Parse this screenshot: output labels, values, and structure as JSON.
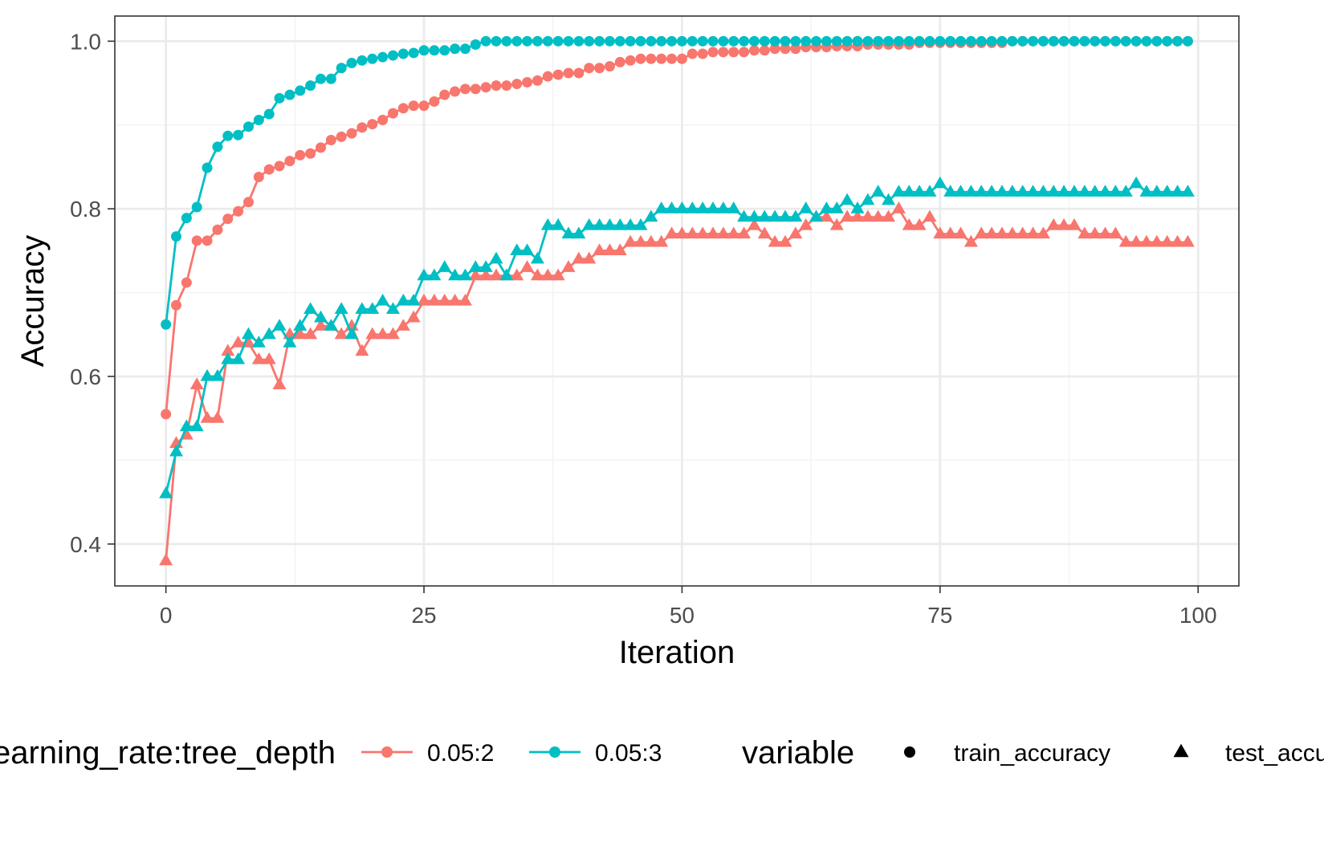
{
  "colors": {
    "series_0.05:2": "#F8766D",
    "series_0.05:3": "#00BFC4",
    "panel_border": "#333333",
    "grid_major": "#EBEBEB",
    "grid_minor": "#F3F3F3"
  },
  "chart_data": {
    "type": "line",
    "xlabel": "Iteration",
    "ylabel": "Accuracy",
    "xlim": [
      -4.95,
      103.95
    ],
    "ylim": [
      0.35,
      1.03
    ],
    "x_ticks": [
      0,
      25,
      50,
      75,
      100
    ],
    "x_tick_labels": [
      "0",
      "25",
      "50",
      "75",
      "100"
    ],
    "y_ticks": [
      0.4,
      0.6,
      0.8,
      1.0
    ],
    "y_tick_labels": [
      "0.4",
      "0.6",
      "0.8",
      "1.0"
    ],
    "grid": true,
    "legend_position": "bottom",
    "legend": {
      "color_title": "learning_rate:tree_depth",
      "color_entries": [
        "0.05:2",
        "0.05:3"
      ],
      "shape_title": "variable",
      "shape_entries": [
        {
          "label": "train_accuracy",
          "shape": "circle"
        },
        {
          "label": "test_accuracy",
          "shape": "triangle"
        }
      ]
    },
    "x": [
      0,
      1,
      2,
      3,
      4,
      5,
      6,
      7,
      8,
      9,
      10,
      11,
      12,
      13,
      14,
      15,
      16,
      17,
      18,
      19,
      20,
      21,
      22,
      23,
      24,
      25,
      26,
      27,
      28,
      29,
      30,
      31,
      32,
      33,
      34,
      35,
      36,
      37,
      38,
      39,
      40,
      41,
      42,
      43,
      44,
      45,
      46,
      47,
      48,
      49,
      50,
      51,
      52,
      53,
      54,
      55,
      56,
      57,
      58,
      59,
      60,
      61,
      62,
      63,
      64,
      65,
      66,
      67,
      68,
      69,
      70,
      71,
      72,
      73,
      74,
      75,
      76,
      77,
      78,
      79,
      80,
      81,
      82,
      83,
      84,
      85,
      86,
      87,
      88,
      89,
      90,
      91,
      92,
      93,
      94,
      95,
      96,
      97,
      98,
      99
    ],
    "series": [
      {
        "name": "0.05:2",
        "variable": "train_accuracy",
        "color": "0.05:2",
        "marker": "circle",
        "values": [
          0.555,
          0.685,
          0.712,
          0.762,
          0.762,
          0.775,
          0.788,
          0.797,
          0.808,
          0.838,
          0.847,
          0.851,
          0.857,
          0.864,
          0.866,
          0.873,
          0.882,
          0.886,
          0.89,
          0.897,
          0.901,
          0.906,
          0.914,
          0.92,
          0.923,
          0.923,
          0.928,
          0.936,
          0.94,
          0.943,
          0.943,
          0.945,
          0.947,
          0.947,
          0.949,
          0.951,
          0.953,
          0.958,
          0.96,
          0.962,
          0.962,
          0.968,
          0.968,
          0.97,
          0.975,
          0.977,
          0.979,
          0.979,
          0.979,
          0.979,
          0.979,
          0.985,
          0.985,
          0.987,
          0.987,
          0.987,
          0.987,
          0.989,
          0.989,
          0.991,
          0.991,
          0.991,
          0.993,
          0.993,
          0.993,
          0.994,
          0.994,
          0.994,
          0.996,
          0.996,
          0.996,
          0.996,
          0.996,
          0.998,
          0.998,
          0.998,
          0.998,
          0.998,
          0.998,
          0.998,
          0.998,
          0.998,
          1.0,
          1.0,
          1.0,
          1.0,
          1.0,
          1.0,
          1.0,
          1.0,
          1.0,
          1.0,
          1.0,
          1.0,
          1.0,
          1.0,
          1.0,
          1.0,
          1.0,
          1.0
        ]
      },
      {
        "name": "0.05:3",
        "variable": "train_accuracy",
        "color": "0.05:3",
        "marker": "circle",
        "values": [
          0.662,
          0.767,
          0.789,
          0.802,
          0.849,
          0.874,
          0.887,
          0.888,
          0.898,
          0.906,
          0.913,
          0.932,
          0.936,
          0.941,
          0.947,
          0.955,
          0.955,
          0.968,
          0.974,
          0.977,
          0.979,
          0.981,
          0.983,
          0.985,
          0.986,
          0.989,
          0.989,
          0.989,
          0.991,
          0.991,
          0.996,
          1.0,
          1.0,
          1.0,
          1.0,
          1.0,
          1.0,
          1.0,
          1.0,
          1.0,
          1.0,
          1.0,
          1.0,
          1.0,
          1.0,
          1.0,
          1.0,
          1.0,
          1.0,
          1.0,
          1.0,
          1.0,
          1.0,
          1.0,
          1.0,
          1.0,
          1.0,
          1.0,
          1.0,
          1.0,
          1.0,
          1.0,
          1.0,
          1.0,
          1.0,
          1.0,
          1.0,
          1.0,
          1.0,
          1.0,
          1.0,
          1.0,
          1.0,
          1.0,
          1.0,
          1.0,
          1.0,
          1.0,
          1.0,
          1.0,
          1.0,
          1.0,
          1.0,
          1.0,
          1.0,
          1.0,
          1.0,
          1.0,
          1.0,
          1.0,
          1.0,
          1.0,
          1.0,
          1.0,
          1.0,
          1.0,
          1.0,
          1.0,
          1.0,
          1.0
        ]
      },
      {
        "name": "0.05:2",
        "variable": "test_accuracy",
        "color": "0.05:2",
        "marker": "triangle",
        "values": [
          0.38,
          0.52,
          0.53,
          0.59,
          0.55,
          0.55,
          0.63,
          0.64,
          0.64,
          0.62,
          0.62,
          0.59,
          0.65,
          0.65,
          0.65,
          0.66,
          0.66,
          0.65,
          0.66,
          0.63,
          0.65,
          0.65,
          0.65,
          0.66,
          0.67,
          0.69,
          0.69,
          0.69,
          0.69,
          0.69,
          0.72,
          0.72,
          0.72,
          0.72,
          0.72,
          0.73,
          0.72,
          0.72,
          0.72,
          0.73,
          0.74,
          0.74,
          0.75,
          0.75,
          0.75,
          0.76,
          0.76,
          0.76,
          0.76,
          0.77,
          0.77,
          0.77,
          0.77,
          0.77,
          0.77,
          0.77,
          0.77,
          0.78,
          0.77,
          0.76,
          0.76,
          0.77,
          0.78,
          0.79,
          0.79,
          0.78,
          0.79,
          0.79,
          0.79,
          0.79,
          0.79,
          0.8,
          0.78,
          0.78,
          0.79,
          0.77,
          0.77,
          0.77,
          0.76,
          0.77,
          0.77,
          0.77,
          0.77,
          0.77,
          0.77,
          0.77,
          0.78,
          0.78,
          0.78,
          0.77,
          0.77,
          0.77,
          0.77,
          0.76,
          0.76,
          0.76,
          0.76,
          0.76,
          0.76,
          0.76
        ]
      },
      {
        "name": "0.05:3",
        "variable": "test_accuracy",
        "color": "0.05:3",
        "marker": "triangle",
        "values": [
          0.46,
          0.51,
          0.54,
          0.54,
          0.6,
          0.6,
          0.62,
          0.62,
          0.65,
          0.64,
          0.65,
          0.66,
          0.64,
          0.66,
          0.68,
          0.67,
          0.66,
          0.68,
          0.65,
          0.68,
          0.68,
          0.69,
          0.68,
          0.69,
          0.69,
          0.72,
          0.72,
          0.73,
          0.72,
          0.72,
          0.73,
          0.73,
          0.74,
          0.72,
          0.75,
          0.75,
          0.74,
          0.78,
          0.78,
          0.77,
          0.77,
          0.78,
          0.78,
          0.78,
          0.78,
          0.78,
          0.78,
          0.79,
          0.8,
          0.8,
          0.8,
          0.8,
          0.8,
          0.8,
          0.8,
          0.8,
          0.79,
          0.79,
          0.79,
          0.79,
          0.79,
          0.79,
          0.8,
          0.79,
          0.8,
          0.8,
          0.81,
          0.8,
          0.81,
          0.82,
          0.81,
          0.82,
          0.82,
          0.82,
          0.82,
          0.83,
          0.82,
          0.82,
          0.82,
          0.82,
          0.82,
          0.82,
          0.82,
          0.82,
          0.82,
          0.82,
          0.82,
          0.82,
          0.82,
          0.82,
          0.82,
          0.82,
          0.82,
          0.82,
          0.83,
          0.82,
          0.82,
          0.82,
          0.82,
          0.82
        ]
      }
    ]
  }
}
